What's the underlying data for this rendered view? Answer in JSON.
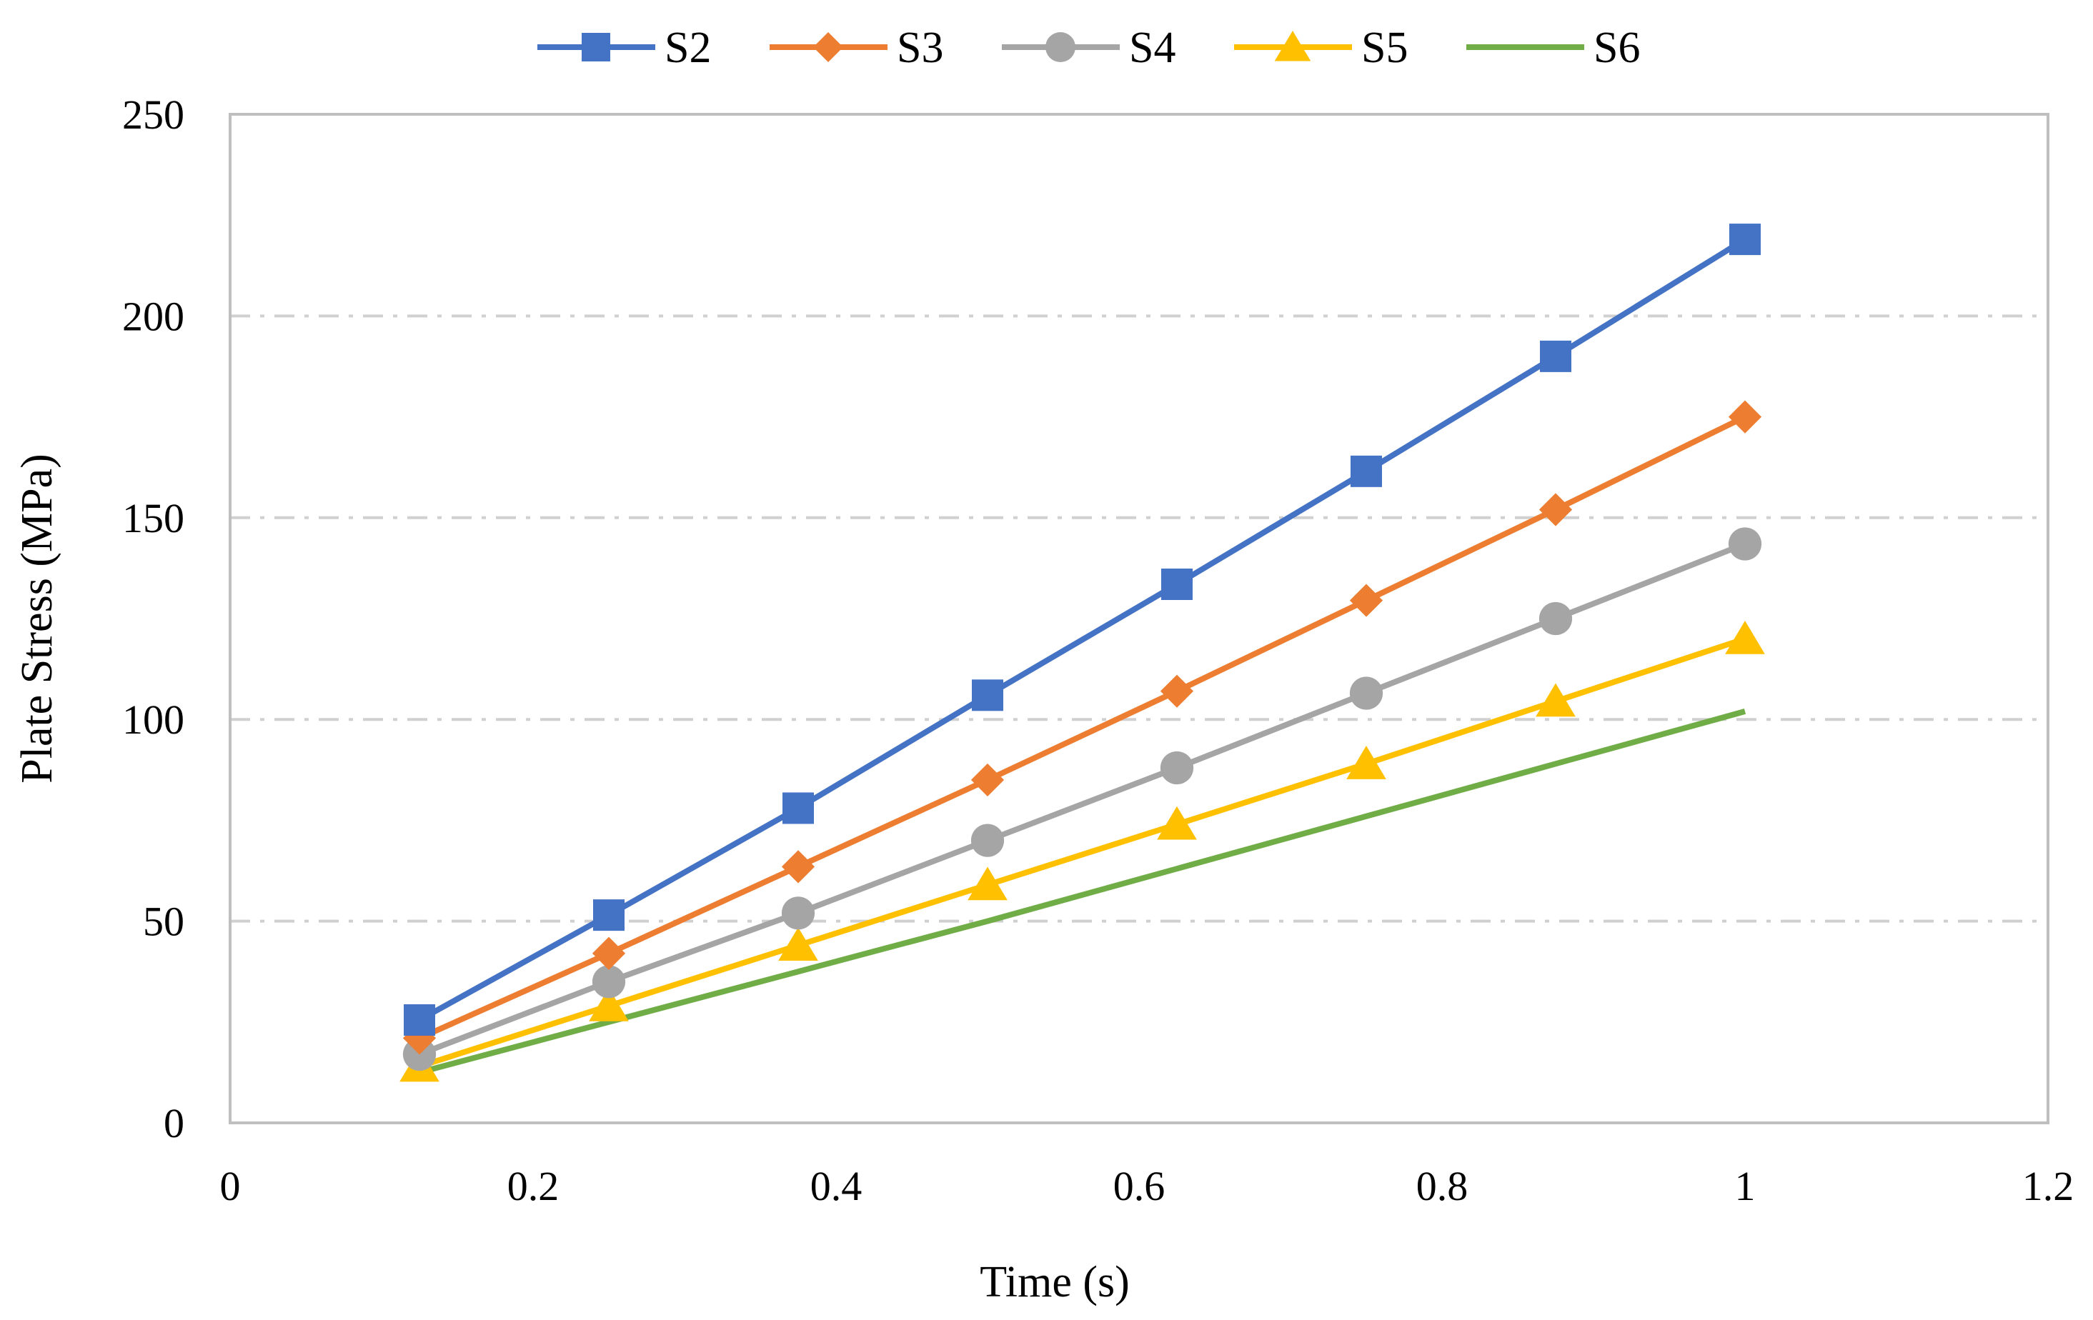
{
  "chart_data": {
    "type": "line",
    "title": "",
    "xlabel": "Time (s)",
    "ylabel": "Plate Stress (MPa)",
    "xlim": [
      0,
      1.2
    ],
    "ylim": [
      0,
      250
    ],
    "xticks": [
      0,
      0.2,
      0.4,
      0.6,
      0.8,
      1,
      1.2
    ],
    "xtick_labels": [
      "0",
      "0.2",
      "0.4",
      "0.6",
      "0.8",
      "1",
      "1.2"
    ],
    "yticks": [
      0,
      50,
      100,
      150,
      200,
      250
    ],
    "ytick_labels": [
      "0",
      "50",
      "100",
      "150",
      "200",
      "250"
    ],
    "grid": "horizontal dash-dot",
    "legend_position": "top",
    "x": [
      0.125,
      0.25,
      0.375,
      0.5,
      0.625,
      0.75,
      0.875,
      1.0
    ],
    "series": [
      {
        "name": "S2",
        "color": "#4472C4",
        "marker": "square",
        "values": [
          25.5,
          51.5,
          78,
          106,
          133.5,
          161.5,
          190,
          219
        ]
      },
      {
        "name": "S3",
        "color": "#ED7D31",
        "marker": "diamond",
        "values": [
          21,
          42,
          63.5,
          85,
          107,
          129.5,
          152,
          175
        ]
      },
      {
        "name": "S4",
        "color": "#A5A5A5",
        "marker": "circle",
        "values": [
          17,
          35,
          52,
          70,
          88,
          106.5,
          125,
          143.5
        ]
      },
      {
        "name": "S5",
        "color": "#FFC000",
        "marker": "triangle",
        "values": [
          14,
          29,
          44,
          59,
          74,
          89,
          104.5,
          120
        ]
      },
      {
        "name": "S6",
        "color": "#70AD47",
        "marker": "none",
        "values": [
          12.5,
          25,
          37.5,
          50,
          63,
          76,
          89,
          102
        ]
      }
    ]
  }
}
